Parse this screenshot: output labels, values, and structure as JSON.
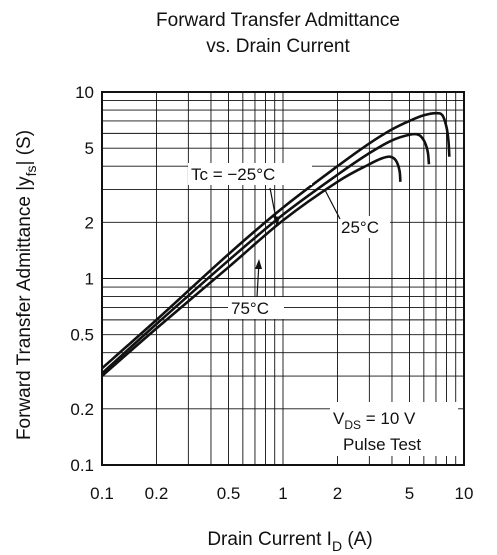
{
  "chart_data": {
    "type": "line",
    "title_lines": [
      "Forward Transfer Admittance",
      "vs. Drain Current"
    ],
    "xlabel": {
      "main": "Drain Current  I",
      "sub": "D",
      "tail": "  (A)"
    },
    "ylabel": {
      "main": "Forward Transfer Admittance  |y",
      "sub": "fs",
      "tail": "|  (S)"
    },
    "x_scale": "log",
    "y_scale": "log",
    "xlim": [
      0.1,
      10
    ],
    "ylim": [
      0.1,
      10
    ],
    "x_ticks": [
      {
        "value": 0.1,
        "label": "0.1"
      },
      {
        "value": 0.2,
        "label": "0.2"
      },
      {
        "value": 0.5,
        "label": "0.5"
      },
      {
        "value": 1,
        "label": "1"
      },
      {
        "value": 2,
        "label": "2"
      },
      {
        "value": 5,
        "label": "5"
      },
      {
        "value": 10,
        "label": "10"
      }
    ],
    "y_ticks": [
      {
        "value": 0.1,
        "label": "0.1"
      },
      {
        "value": 0.2,
        "label": "0.2"
      },
      {
        "value": 0.5,
        "label": "0.5"
      },
      {
        "value": 1,
        "label": "1"
      },
      {
        "value": 2,
        "label": "2"
      },
      {
        "value": 5,
        "label": "5"
      },
      {
        "value": 10,
        "label": "10"
      }
    ],
    "grid": true,
    "series": [
      {
        "name": "Tc = −25°C",
        "points": [
          [
            0.1,
            0.33
          ],
          [
            0.2,
            0.6
          ],
          [
            0.5,
            1.35
          ],
          [
            1,
            2.4
          ],
          [
            2,
            4.0
          ],
          [
            3,
            5.3
          ],
          [
            4,
            6.3
          ],
          [
            5,
            7.0
          ],
          [
            6,
            7.5
          ],
          [
            7,
            7.7
          ],
          [
            7.6,
            7.5
          ],
          [
            8.0,
            6.5
          ],
          [
            8.2,
            5.5
          ],
          [
            8.3,
            4.5
          ]
        ]
      },
      {
        "name": "25°C",
        "points": [
          [
            0.1,
            0.31
          ],
          [
            0.2,
            0.57
          ],
          [
            0.5,
            1.25
          ],
          [
            1,
            2.2
          ],
          [
            2,
            3.6
          ],
          [
            3,
            4.7
          ],
          [
            4,
            5.5
          ],
          [
            5,
            5.9
          ],
          [
            5.6,
            5.9
          ],
          [
            6.0,
            5.5
          ],
          [
            6.3,
            4.8
          ],
          [
            6.4,
            4.1
          ]
        ]
      },
      {
        "name": "75°C",
        "points": [
          [
            0.1,
            0.3
          ],
          [
            0.2,
            0.54
          ],
          [
            0.5,
            1.15
          ],
          [
            1,
            2.05
          ],
          [
            2,
            3.3
          ],
          [
            3,
            4.1
          ],
          [
            3.5,
            4.4
          ],
          [
            3.9,
            4.5
          ],
          [
            4.2,
            4.3
          ],
          [
            4.4,
            3.8
          ],
          [
            4.45,
            3.3
          ]
        ]
      }
    ],
    "annotations": {
      "tc_label": "Tc = −25°C",
      "label_25": "25°C",
      "label_75": "75°C",
      "vds_main": "V",
      "vds_sub": "DS",
      "vds_tail": " = 10 V",
      "pulse": "Pulse Test"
    }
  }
}
